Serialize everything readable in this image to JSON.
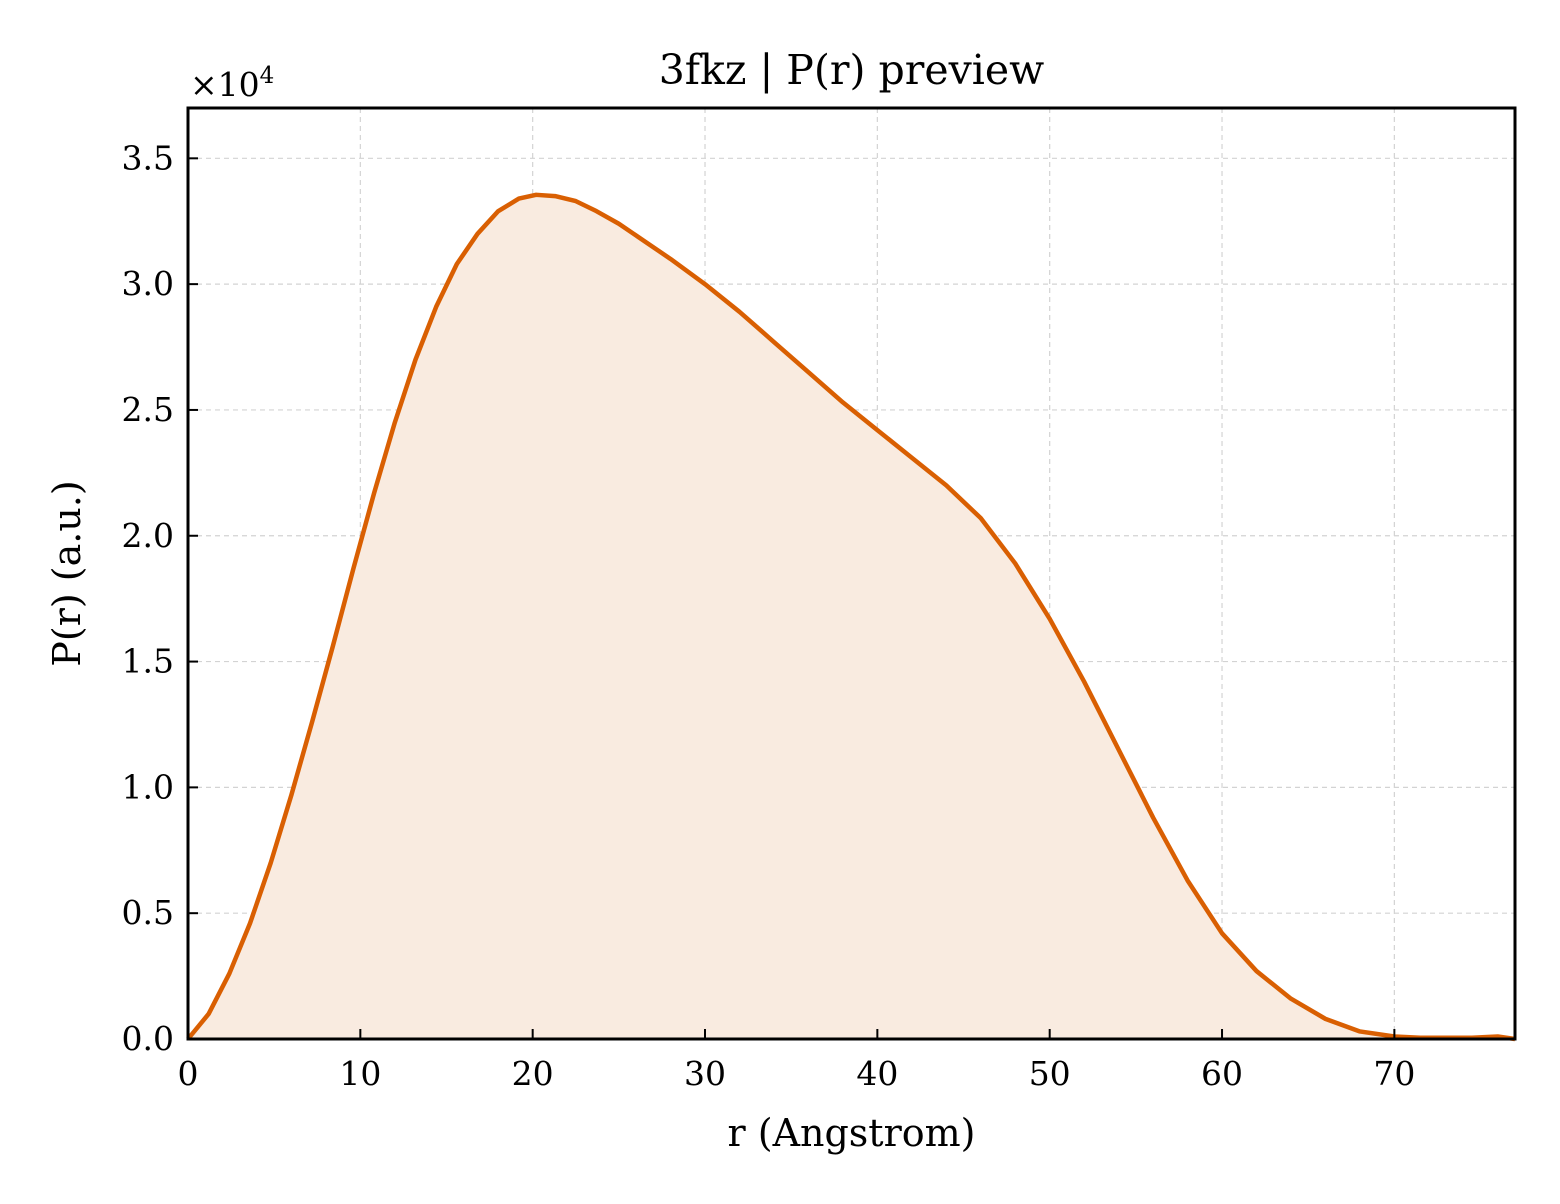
{
  "chart_data": {
    "type": "area",
    "title": "3fkz | P(r) preview",
    "xlabel": "r (Angstrom)",
    "ylabel": "P(r) (a.u.)",
    "y_multiplier": "×10",
    "y_multiplier_exponent": "4",
    "xlim": [
      0,
      77
    ],
    "ylim": [
      0,
      3.7
    ],
    "x_ticks": [
      0,
      10,
      20,
      30,
      40,
      50,
      60,
      70
    ],
    "x_tick_labels": [
      "0",
      "10",
      "20",
      "30",
      "40",
      "50",
      "60",
      "70"
    ],
    "y_ticks": [
      0,
      0.5,
      1.0,
      1.5,
      2.0,
      2.5,
      3.0,
      3.5
    ],
    "y_tick_labels": [
      "0.0",
      "0.5",
      "1.0",
      "1.5",
      "2.0",
      "2.5",
      "3.0",
      "3.5"
    ],
    "grid": true,
    "line_color": "#d95f02",
    "fill_color": "#f9ebe0",
    "series": [
      {
        "x": [
          0,
          1.2,
          2.4,
          3.6,
          4.8,
          6.0,
          7.2,
          8.4,
          9.6,
          10.8,
          12.0,
          13.2,
          14.4,
          15.6,
          16.8,
          18.0,
          19.2,
          20.2,
          21.3,
          22.5,
          23.7,
          25.0,
          26.5,
          28.0,
          30.0,
          32.0,
          34.0,
          36.0,
          38.0,
          40.0,
          42.0,
          44.0,
          46.0,
          48.0,
          50.0,
          52.0,
          54.0,
          56.0,
          58.0,
          60.0,
          62.0,
          64.0,
          66.0,
          68.0,
          70.0,
          71.5,
          73.0,
          74.5,
          76.0,
          77.0
        ],
        "y": [
          0.0,
          0.1,
          0.26,
          0.46,
          0.7,
          0.97,
          1.26,
          1.56,
          1.87,
          2.17,
          2.45,
          2.7,
          2.91,
          3.08,
          3.2,
          3.29,
          3.34,
          3.355,
          3.35,
          3.33,
          3.29,
          3.24,
          3.17,
          3.1,
          3.0,
          2.89,
          2.77,
          2.65,
          2.53,
          2.42,
          2.31,
          2.2,
          2.07,
          1.89,
          1.67,
          1.42,
          1.15,
          0.88,
          0.63,
          0.42,
          0.27,
          0.16,
          0.08,
          0.03,
          0.01,
          0.005,
          0.005,
          0.005,
          0.01,
          0.0
        ]
      }
    ]
  }
}
